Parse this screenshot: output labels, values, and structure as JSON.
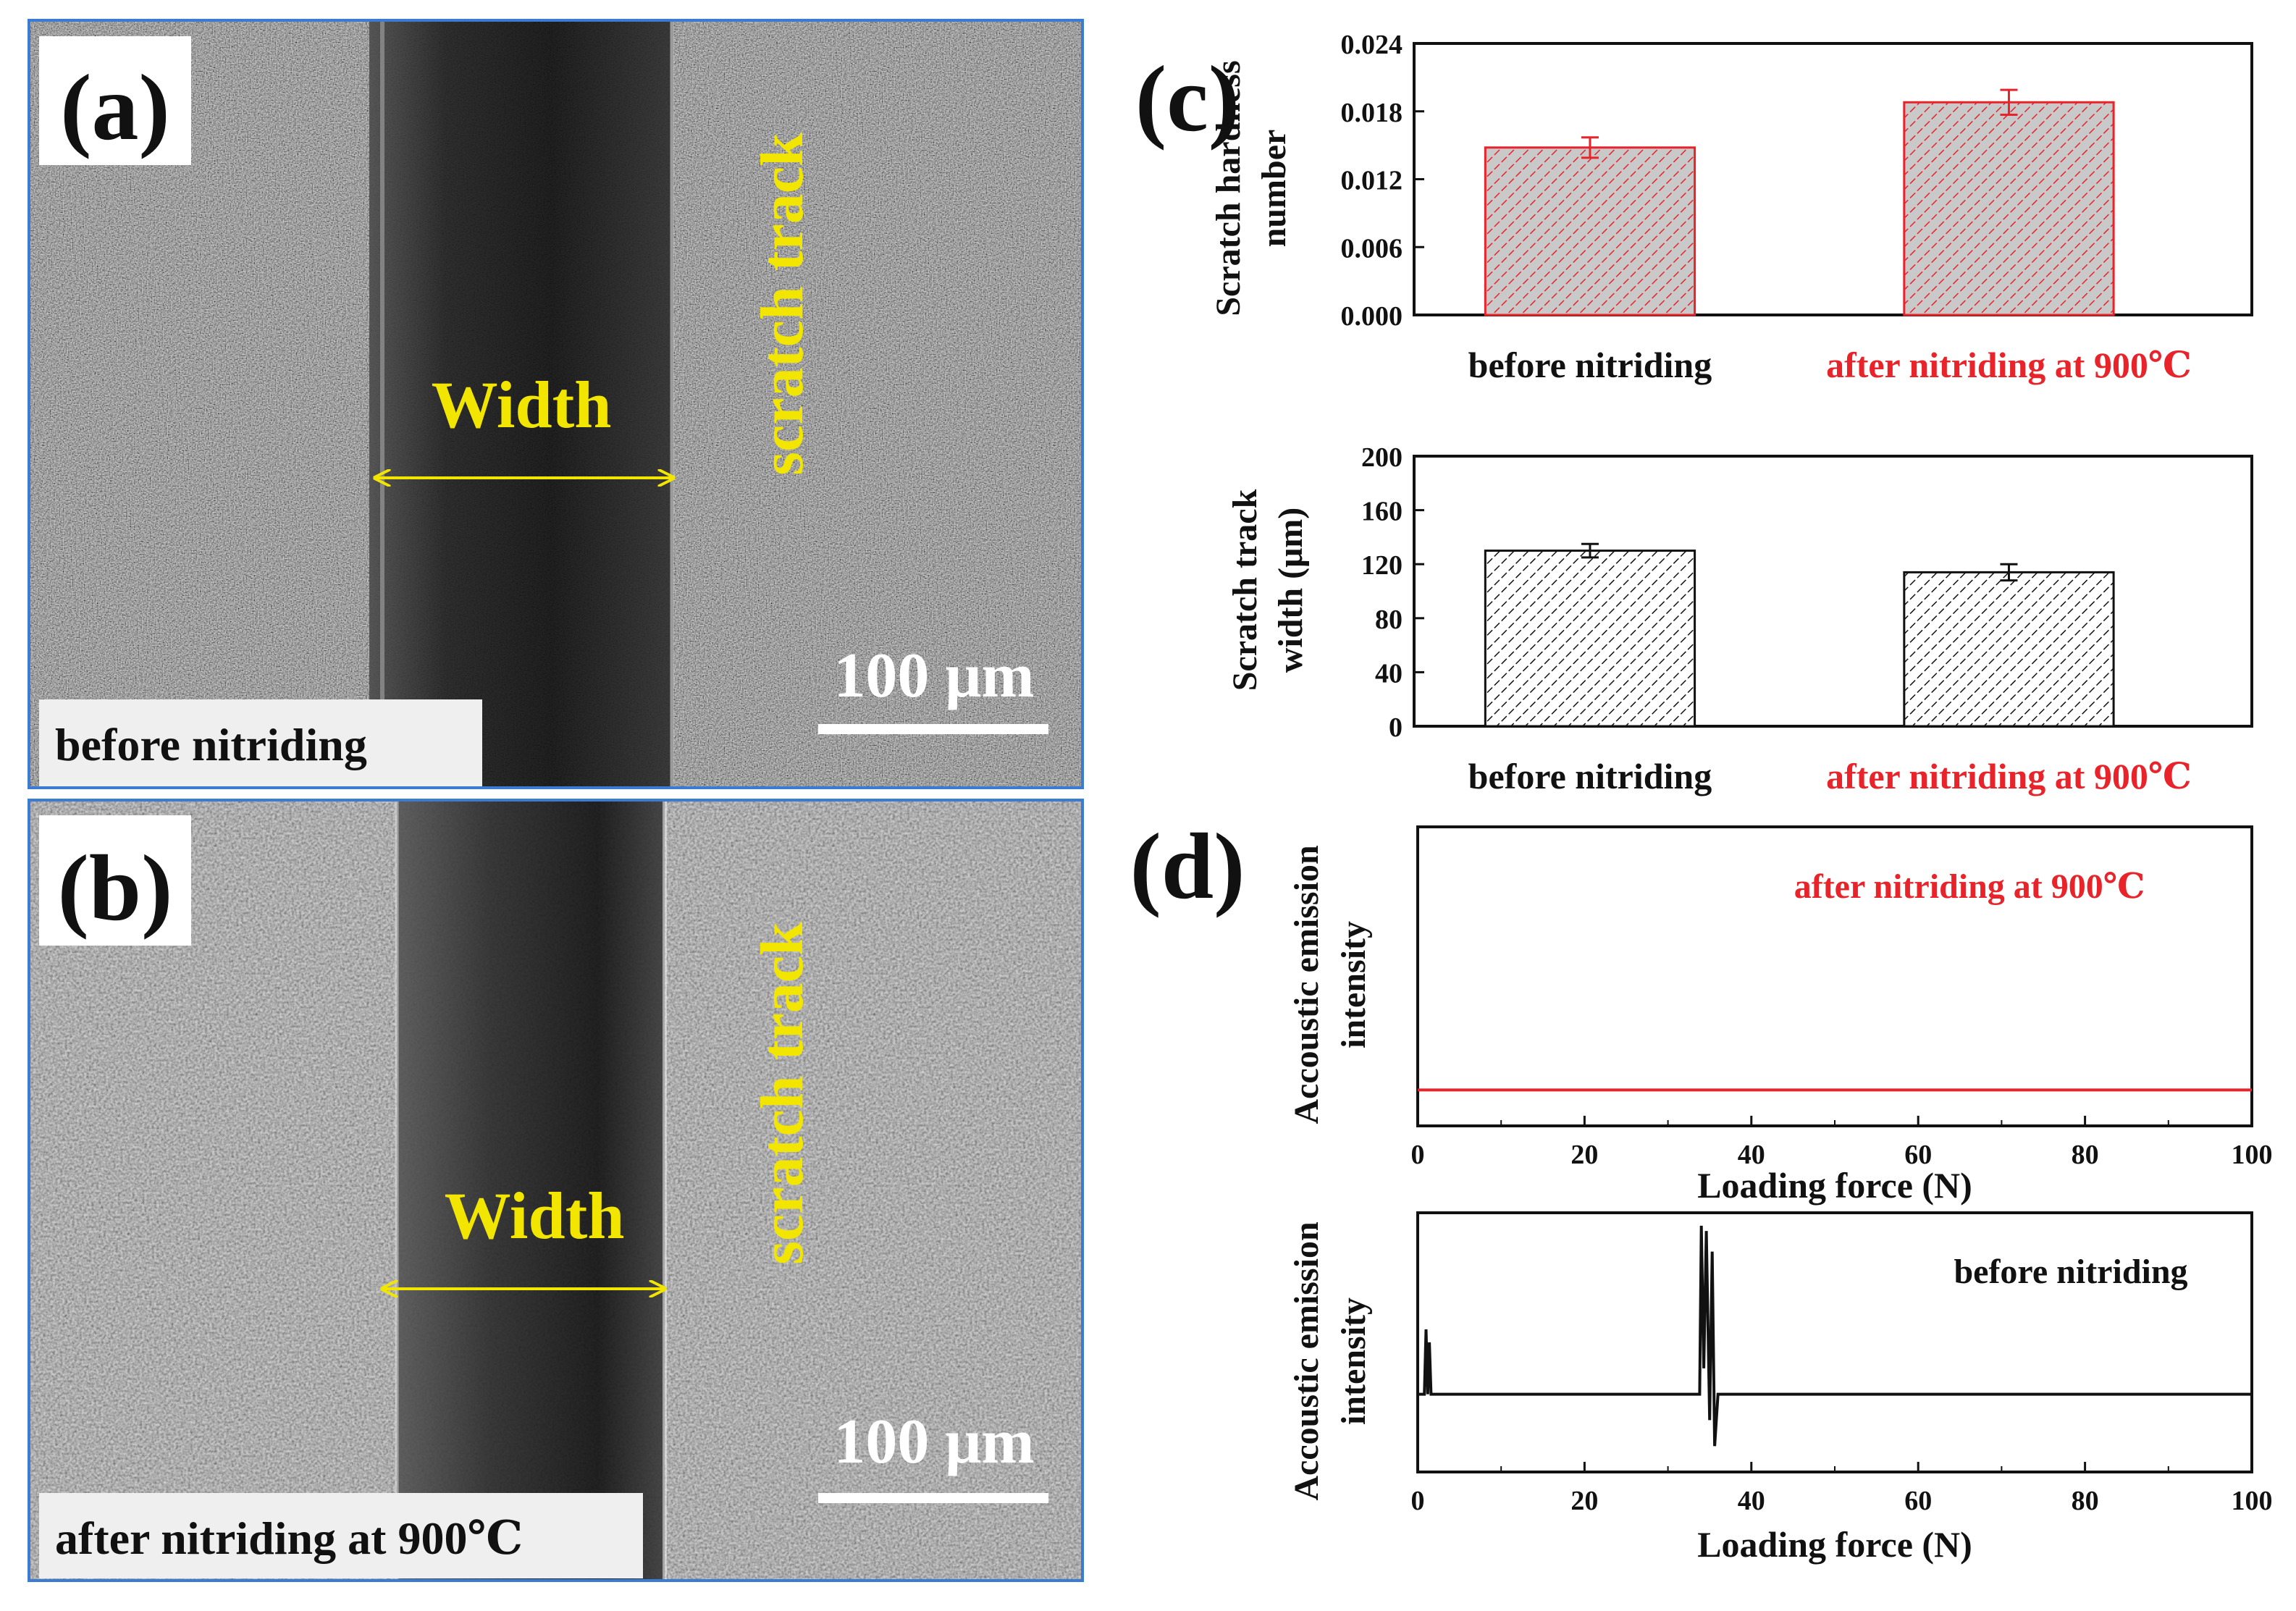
{
  "panel_a": {
    "label": "(a)",
    "width_label": "Width",
    "track_label": "scratch track",
    "scale_label": "100 μm",
    "caption": "before nitriding"
  },
  "panel_b": {
    "label": "(b)",
    "width_label": "Width",
    "track_label": "scratch track",
    "scale_label": "100 μm",
    "caption": "after nitriding at 900℃"
  },
  "panel_c": {
    "label": "(c)"
  },
  "panel_d": {
    "label": "(d)"
  },
  "colors": {
    "red": "#e8232a",
    "black": "#111111",
    "yellow": "#f2e600",
    "frame_blue": "#3b7bd4"
  },
  "chart_data": [
    {
      "id": "hardness",
      "type": "bar",
      "ylabel_line1": "Scratch hardness",
      "ylabel_line2": "number",
      "categories": [
        "before nitriding",
        "after nitriding at 900℃"
      ],
      "category_colors": [
        "#111111",
        "#e8232a"
      ],
      "values": [
        0.0148,
        0.0188
      ],
      "errors": [
        0.0009,
        0.0011
      ],
      "ylim": [
        0,
        0.024
      ],
      "yticks": [
        "0.000",
        "0.006",
        "0.012",
        "0.018",
        "0.024"
      ],
      "bar_color": "#e8232a"
    },
    {
      "id": "width",
      "type": "bar",
      "ylabel_line1": "Scratch track",
      "ylabel_line2": "width (μm)",
      "categories": [
        "before nitriding",
        "after nitriding at 900℃"
      ],
      "category_colors": [
        "#111111",
        "#e8232a"
      ],
      "values": [
        130,
        114
      ],
      "errors": [
        5,
        6
      ],
      "ylim": [
        0,
        200
      ],
      "yticks": [
        "0",
        "40",
        "80",
        "120",
        "160",
        "200"
      ],
      "bar_color": "#111111"
    },
    {
      "id": "ae_after",
      "type": "line",
      "ylabel_line1": "Accoustic emission",
      "ylabel_line2": "intensity",
      "xlabel": "Loading force (N)",
      "xlim": [
        0,
        100
      ],
      "xticks": [
        "0",
        "20",
        "40",
        "60",
        "80",
        "100"
      ],
      "annotation": "after nitriding at 900℃",
      "annotation_color": "#e8232a",
      "series": [
        {
          "name": "after nitriding at 900℃",
          "color": "#e8232a",
          "x": [
            0,
            100
          ],
          "y": [
            0.12,
            0.12
          ]
        }
      ],
      "ylim": [
        0,
        1
      ]
    },
    {
      "id": "ae_before",
      "type": "line",
      "ylabel_line1": "Accoustic emission",
      "ylabel_line2": "intensity",
      "xlabel": "Loading force (N)",
      "xlim": [
        0,
        100
      ],
      "xticks": [
        "0",
        "20",
        "40",
        "60",
        "80",
        "100"
      ],
      "annotation": "before nitriding",
      "annotation_color": "#111111",
      "series": [
        {
          "name": "before nitriding",
          "color": "#111111",
          "x": [
            0,
            0.8,
            1.0,
            1.2,
            1.4,
            1.6,
            33.8,
            34.0,
            34.3,
            34.6,
            35.0,
            35.3,
            35.6,
            36.0,
            100
          ],
          "y": [
            0.3,
            0.3,
            0.55,
            0.3,
            0.5,
            0.3,
            0.3,
            0.95,
            0.4,
            0.93,
            0.2,
            0.85,
            0.1,
            0.3,
            0.3
          ]
        }
      ],
      "ylim": [
        0,
        1
      ]
    }
  ]
}
